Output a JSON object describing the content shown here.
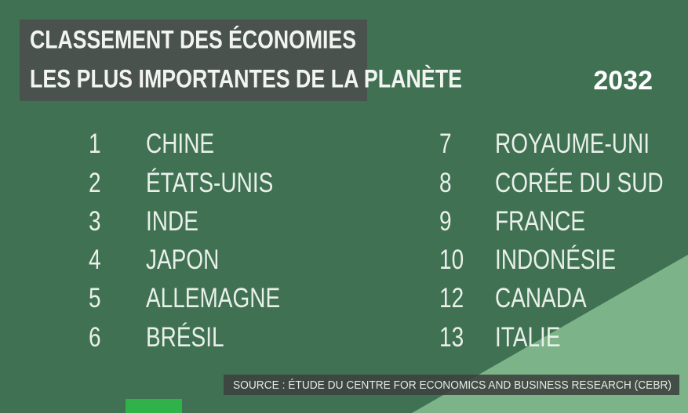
{
  "header": {
    "title_lines": [
      "CLASSEMENT DES ÉCONOMIES",
      "LES PLUS IMPORTANTES DE LA PLANÈTE"
    ],
    "year": "2032"
  },
  "ranking": [
    {
      "rank": "1",
      "country": "CHINE"
    },
    {
      "rank": "2",
      "country": "ÉTATS-UNIS"
    },
    {
      "rank": "3",
      "country": "INDE"
    },
    {
      "rank": "4",
      "country": "JAPON"
    },
    {
      "rank": "5",
      "country": "ALLEMAGNE"
    },
    {
      "rank": "6",
      "country": "BRÉSIL"
    },
    {
      "rank": "7",
      "country": "ROYAUME-UNI"
    },
    {
      "rank": "8",
      "country": "CORÉE DU SUD"
    },
    {
      "rank": "9",
      "country": "FRANCE"
    },
    {
      "rank": "10",
      "country": "INDONÉSIE"
    },
    {
      "rank": "12",
      "country": "CANADA"
    },
    {
      "rank": "13",
      "country": "ITALIE"
    }
  ],
  "source": "SOURCE : ÉTUDE DU CENTRE FOR ECONOMICS AND BUSINESS RESEARCH (CEBR)"
}
